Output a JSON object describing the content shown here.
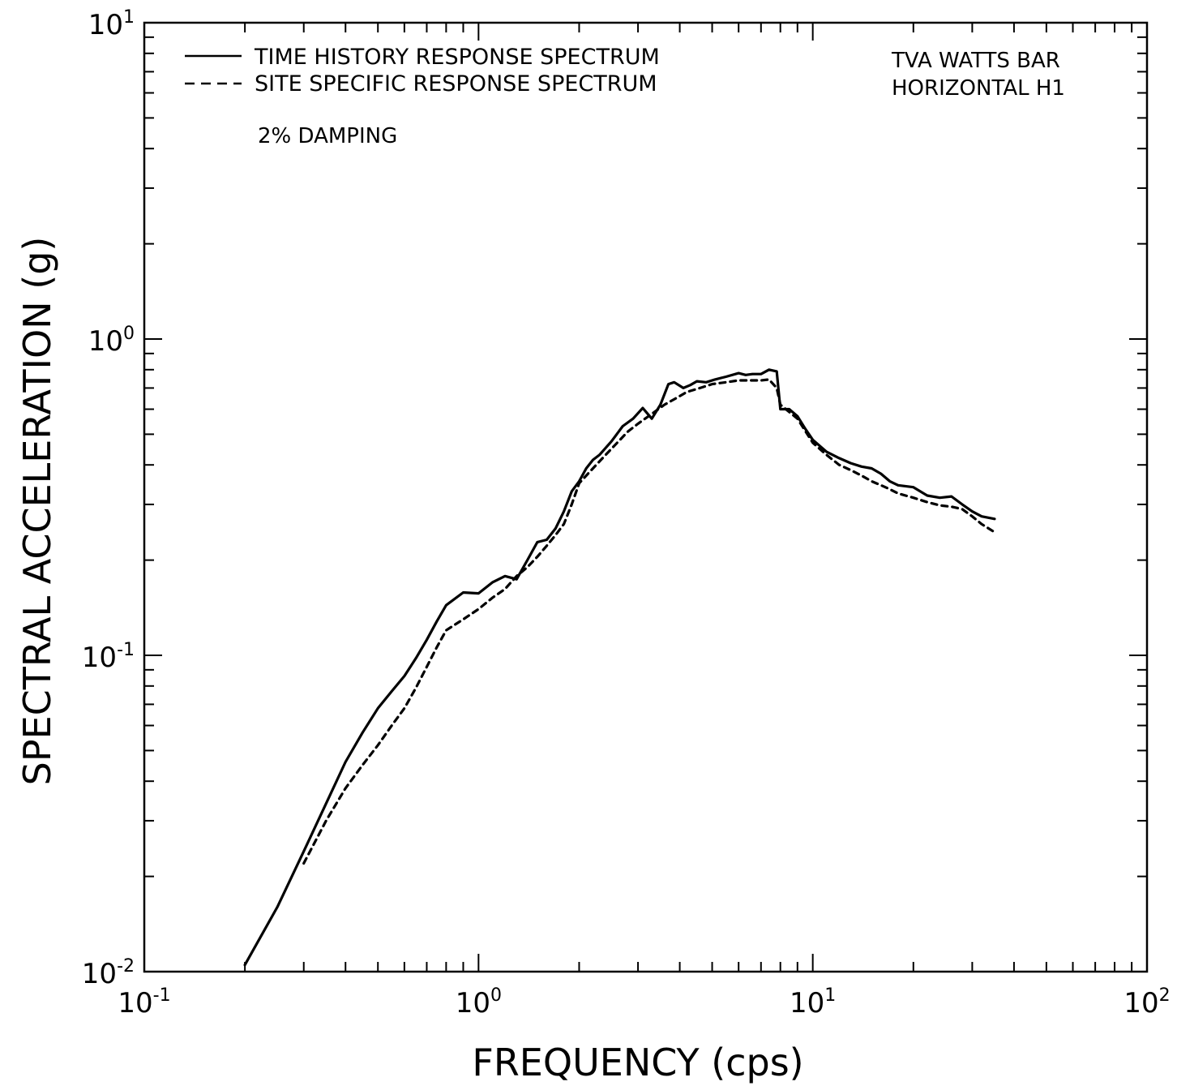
{
  "chart_data": {
    "type": "line",
    "title": "",
    "xlabel": "FREQUENCY (cps)",
    "ylabel": "SPECTRAL ACCELERATION (g)",
    "x_scale": "log",
    "y_scale": "log",
    "xlim": [
      0.1,
      100
    ],
    "ylim": [
      0.01,
      10
    ],
    "grid": false,
    "legend_position": "top-left",
    "x_ticks": [
      {
        "base": "10",
        "exp": "-1",
        "value": 0.1
      },
      {
        "base": "10",
        "exp": "0",
        "value": 1
      },
      {
        "base": "10",
        "exp": "1",
        "value": 10
      },
      {
        "base": "10",
        "exp": "2",
        "value": 100
      }
    ],
    "y_ticks": [
      {
        "base": "10",
        "exp": "-2",
        "value": 0.01
      },
      {
        "base": "10",
        "exp": "-1",
        "value": 0.1
      },
      {
        "base": "10",
        "exp": "0",
        "value": 1
      },
      {
        "base": "10",
        "exp": "1",
        "value": 10
      }
    ],
    "annotations": {
      "damping": "2% DAMPING",
      "site_line1": "TVA WATTS BAR",
      "site_line2": "HORIZONTAL H1"
    },
    "series": [
      {
        "name": "TIME HISTORY RESPONSE SPECTRUM",
        "style": "solid",
        "color": "#000000",
        "x": [
          0.2,
          0.25,
          0.3,
          0.35,
          0.4,
          0.45,
          0.5,
          0.55,
          0.6,
          0.65,
          0.7,
          0.75,
          0.8,
          0.9,
          1.0,
          1.1,
          1.2,
          1.3,
          1.4,
          1.5,
          1.6,
          1.7,
          1.8,
          1.9,
          2.0,
          2.1,
          2.2,
          2.3,
          2.5,
          2.7,
          2.9,
          3.1,
          3.3,
          3.5,
          3.7,
          3.85,
          4.1,
          4.3,
          4.5,
          4.8,
          5.1,
          5.5,
          6.0,
          6.3,
          6.6,
          7.0,
          7.4,
          7.8,
          8.0,
          8.5,
          9.0,
          9.5,
          10.0,
          11.0,
          12.0,
          13.0,
          14.0,
          15.0,
          16.0,
          17.0,
          18.0,
          20.0,
          22.0,
          24.0,
          26.0,
          28.0,
          30.0,
          32.0,
          35.0
        ],
        "y": [
          0.0105,
          0.016,
          0.024,
          0.034,
          0.046,
          0.057,
          0.068,
          0.077,
          0.086,
          0.098,
          0.112,
          0.128,
          0.144,
          0.158,
          0.157,
          0.17,
          0.178,
          0.174,
          0.2,
          0.228,
          0.232,
          0.252,
          0.285,
          0.33,
          0.355,
          0.39,
          0.415,
          0.43,
          0.475,
          0.53,
          0.56,
          0.605,
          0.56,
          0.62,
          0.72,
          0.73,
          0.7,
          0.715,
          0.735,
          0.73,
          0.745,
          0.76,
          0.78,
          0.77,
          0.775,
          0.775,
          0.8,
          0.79,
          0.6,
          0.6,
          0.57,
          0.52,
          0.48,
          0.44,
          0.42,
          0.405,
          0.395,
          0.39,
          0.375,
          0.355,
          0.345,
          0.34,
          0.32,
          0.315,
          0.318,
          0.3,
          0.285,
          0.275,
          0.27
        ]
      },
      {
        "name": "SITE SPECIFIC RESPONSE SPECTRUM",
        "style": "dashed",
        "color": "#000000",
        "x": [
          0.3,
          0.35,
          0.4,
          0.45,
          0.5,
          0.55,
          0.6,
          0.65,
          0.7,
          0.75,
          0.8,
          0.9,
          1.0,
          1.1,
          1.2,
          1.3,
          1.4,
          1.5,
          1.6,
          1.7,
          1.8,
          1.9,
          2.0,
          2.2,
          2.4,
          2.6,
          2.8,
          3.0,
          3.3,
          3.6,
          3.9,
          4.2,
          4.6,
          5.0,
          5.5,
          6.0,
          6.5,
          7.0,
          7.4,
          7.8,
          8.0,
          9.0,
          10.0,
          11.0,
          12.0,
          13.0,
          14.0,
          15.0,
          16.0,
          17.0,
          18.0,
          20.0,
          22.0,
          24.0,
          26.0,
          28.0,
          30.0,
          32.0,
          35.0
        ],
        "y": [
          0.022,
          0.03,
          0.038,
          0.045,
          0.052,
          0.06,
          0.068,
          0.079,
          0.092,
          0.106,
          0.12,
          0.13,
          0.14,
          0.152,
          0.162,
          0.178,
          0.19,
          0.205,
          0.222,
          0.24,
          0.26,
          0.3,
          0.35,
          0.39,
          0.43,
          0.47,
          0.51,
          0.54,
          0.58,
          0.62,
          0.65,
          0.68,
          0.7,
          0.72,
          0.73,
          0.74,
          0.74,
          0.74,
          0.745,
          0.7,
          0.62,
          0.56,
          0.47,
          0.43,
          0.4,
          0.385,
          0.37,
          0.355,
          0.345,
          0.335,
          0.325,
          0.315,
          0.305,
          0.298,
          0.295,
          0.29,
          0.275,
          0.26,
          0.245
        ]
      }
    ]
  }
}
